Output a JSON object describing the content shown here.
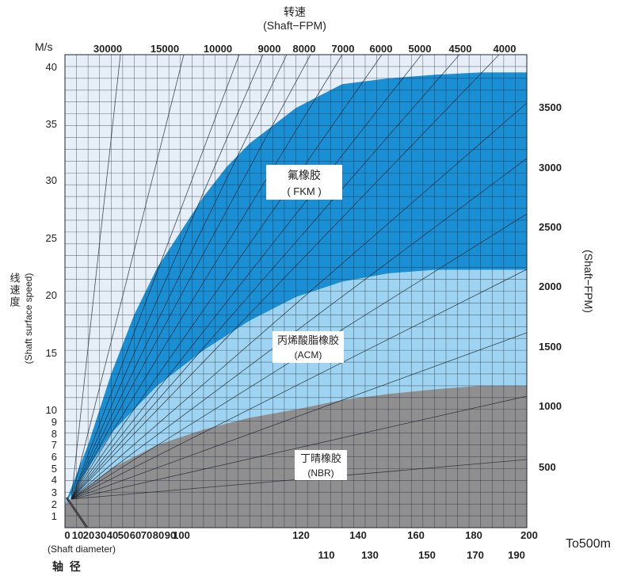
{
  "chart_data": {
    "type": "area",
    "title": "转速",
    "subtitle": "(Shaft−FPM)",
    "y_unit": "M/s",
    "ylabel": "线速度",
    "ylabel_en": "(Shaft surface speed)",
    "right_axis_label": "(Shaft−FPM)",
    "xlabel_en": "(Shaft diameter)",
    "xlabel": "轴  径",
    "x_extra_label": "To500m",
    "xlim": [
      0,
      200
    ],
    "ylim": [
      0,
      40
    ],
    "grid": true,
    "x_ticks": [
      "0",
      "10",
      "20",
      "30",
      "40",
      "50",
      "60",
      "70",
      "80",
      "90",
      "100",
      "120",
      "140",
      "160",
      "180",
      "200"
    ],
    "x_ticks_secondary": [
      "110",
      "130",
      "150",
      "170",
      "190"
    ],
    "y_ticks": [
      "1",
      "2",
      "3",
      "4",
      "5",
      "6",
      "7",
      "8",
      "9",
      "10",
      "15",
      "20",
      "25",
      "30",
      "35",
      "40"
    ],
    "rpm_labels": [
      "30000",
      "15000",
      "10000",
      "9000",
      "8000",
      "7000",
      "6000",
      "5000",
      "4500",
      "4000"
    ],
    "fpm_ticks": [
      "500",
      "1000",
      "1500",
      "2000",
      "2500",
      "3000",
      "3500"
    ],
    "series": [
      {
        "name": "氟橡胶",
        "name_en": "( FKM )",
        "color": "#1a8fd4",
        "upper": [
          [
            0,
            2
          ],
          [
            10,
            7
          ],
          [
            20,
            13
          ],
          [
            30,
            18
          ],
          [
            40,
            22
          ],
          [
            50,
            25
          ],
          [
            60,
            28
          ],
          [
            70,
            30.5
          ],
          [
            80,
            32.5
          ],
          [
            90,
            34
          ],
          [
            100,
            35.5
          ],
          [
            120,
            37.5
          ],
          [
            140,
            38
          ],
          [
            160,
            38.3
          ],
          [
            180,
            38.5
          ],
          [
            200,
            38.5
          ]
        ],
        "lower": [
          [
            0,
            2
          ],
          [
            20,
            8
          ],
          [
            40,
            12
          ],
          [
            60,
            15
          ],
          [
            80,
            17.5
          ],
          [
            100,
            19.5
          ],
          [
            120,
            20.8
          ],
          [
            140,
            21.5
          ],
          [
            160,
            21.8
          ],
          [
            180,
            21.8
          ],
          [
            200,
            21.8
          ]
        ]
      },
      {
        "name": "丙烯酸脂橡胶",
        "name_en": "(ACM)",
        "color": "#9ed4f1",
        "upper": [
          [
            0,
            2
          ],
          [
            20,
            8
          ],
          [
            40,
            12
          ],
          [
            60,
            15
          ],
          [
            80,
            17.5
          ],
          [
            100,
            19.5
          ],
          [
            120,
            20.8
          ],
          [
            140,
            21.5
          ],
          [
            160,
            21.8
          ],
          [
            180,
            21.8
          ],
          [
            200,
            21.8
          ]
        ],
        "lower": [
          [
            0,
            2
          ],
          [
            20,
            5
          ],
          [
            40,
            7
          ],
          [
            60,
            8.3
          ],
          [
            80,
            9.3
          ],
          [
            100,
            10
          ],
          [
            120,
            10.8
          ],
          [
            140,
            11.3
          ],
          [
            160,
            11.7
          ],
          [
            180,
            12
          ],
          [
            200,
            12
          ]
        ]
      },
      {
        "name": "丁晴橡胶",
        "name_en": "(NBR)",
        "color": "#8f8f8f",
        "upper": [
          [
            0,
            2
          ],
          [
            20,
            5
          ],
          [
            40,
            7
          ],
          [
            60,
            8.3
          ],
          [
            80,
            9.3
          ],
          [
            100,
            10
          ],
          [
            120,
            10.8
          ],
          [
            140,
            11.3
          ],
          [
            160,
            11.7
          ],
          [
            180,
            12
          ],
          [
            200,
            12
          ]
        ],
        "lower": [
          [
            0,
            0
          ],
          [
            200,
            0
          ]
        ]
      }
    ]
  }
}
